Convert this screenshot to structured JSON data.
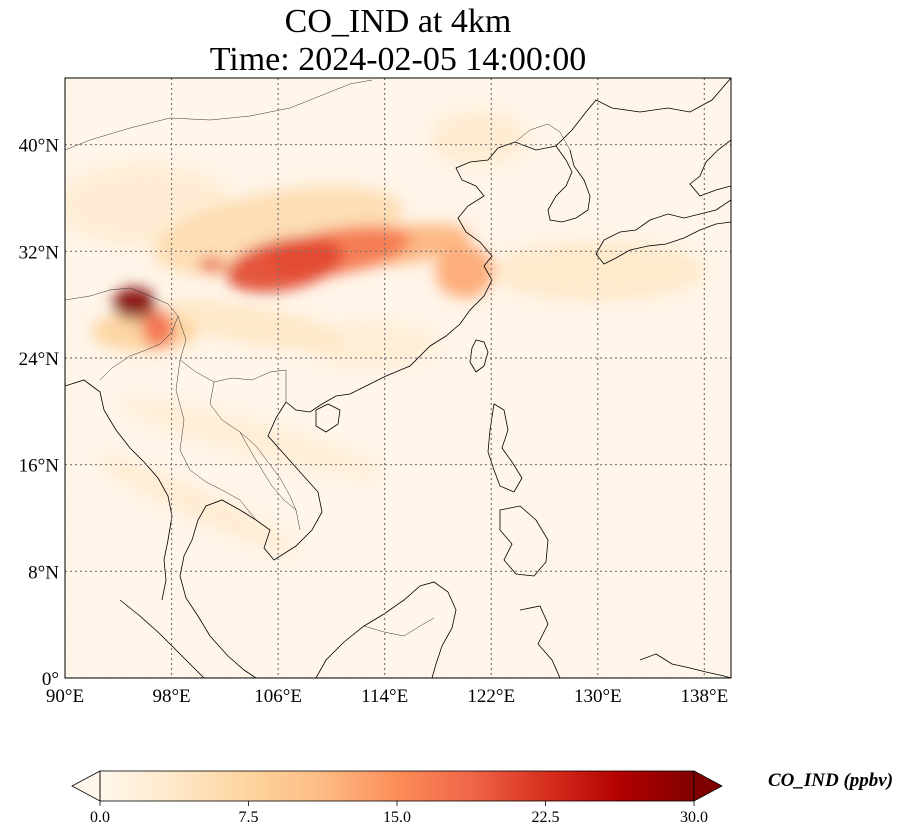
{
  "title": {
    "line1": "CO_IND at 4km",
    "line2": "Time: 2024-02-05 14:00:00"
  },
  "map": {
    "lon_range": [
      90,
      140
    ],
    "lat_range": [
      0,
      45
    ],
    "lon_ticks": [
      {
        "value": 90,
        "label": "90°E"
      },
      {
        "value": 98,
        "label": "98°E"
      },
      {
        "value": 106,
        "label": "106°E"
      },
      {
        "value": 114,
        "label": "114°E"
      },
      {
        "value": 122,
        "label": "122°E"
      },
      {
        "value": 130,
        "label": "130°E"
      },
      {
        "value": 138,
        "label": "138°E"
      }
    ],
    "lat_ticks": [
      {
        "value": 0,
        "label": "0°"
      },
      {
        "value": 8,
        "label": "8°N"
      },
      {
        "value": 16,
        "label": "16°N"
      },
      {
        "value": 24,
        "label": "24°N"
      },
      {
        "value": 32,
        "label": "32°N"
      },
      {
        "value": 40,
        "label": "40°N"
      }
    ],
    "gridlines": true,
    "colormap": "OrRd",
    "plumes": [
      {
        "lon": 95.2,
        "lat": 28.1,
        "rlon": 1.6,
        "rlat": 1.2,
        "value": 30,
        "rot": 0
      },
      {
        "lon": 97.0,
        "lat": 26.2,
        "rlon": 1.2,
        "rlat": 1.4,
        "value": 18,
        "rot": 0
      },
      {
        "lon": 106.5,
        "lat": 31.0,
        "rlon": 4.5,
        "rlat": 1.9,
        "value": 21,
        "rot": -12
      },
      {
        "lon": 110.5,
        "lat": 32.0,
        "rlon": 5.5,
        "rlat": 1.7,
        "value": 17,
        "rot": -10
      },
      {
        "lon": 101.0,
        "lat": 31.0,
        "rlon": 1.0,
        "rlat": 0.5,
        "value": 20,
        "rot": 0
      },
      {
        "lon": 115.5,
        "lat": 32.5,
        "rlon": 5.0,
        "rlat": 1.4,
        "value": 12,
        "rot": -8
      },
      {
        "lon": 120.0,
        "lat": 30.5,
        "rlon": 2.2,
        "rlat": 2.0,
        "value": 13,
        "rot": 0
      },
      {
        "lon": 106.0,
        "lat": 33.5,
        "rlon": 9.5,
        "rlat": 3.0,
        "value": 6,
        "rot": -10
      },
      {
        "lon": 130.0,
        "lat": 30.5,
        "rlon": 8.0,
        "rlat": 2.2,
        "value": 3.5,
        "rot": 0
      },
      {
        "lon": 96.0,
        "lat": 35.5,
        "rlon": 6.5,
        "rlat": 3.0,
        "value": 2.8,
        "rot": 0
      },
      {
        "lon": 96.0,
        "lat": 26.0,
        "rlon": 4.0,
        "rlat": 1.5,
        "value": 8,
        "rot": 0
      },
      {
        "lon": 104.0,
        "lat": 26.5,
        "rlon": 7.0,
        "rlat": 1.4,
        "value": 4,
        "rot": 10
      },
      {
        "lon": 104.0,
        "lat": 18.0,
        "rlon": 10.0,
        "rlat": 1.2,
        "value": 2.5,
        "rot": 15
      },
      {
        "lon": 100.0,
        "lat": 13.0,
        "rlon": 8.0,
        "rlat": 1.0,
        "value": 3,
        "rot": 25
      },
      {
        "lon": 121.0,
        "lat": 40.5,
        "rlon": 3.5,
        "rlat": 2.0,
        "value": 3,
        "rot": 0
      },
      {
        "lon": 113.0,
        "lat": 25.0,
        "rlon": 5.0,
        "rlat": 1.6,
        "value": 2.5,
        "rot": 0
      }
    ]
  },
  "colorbar": {
    "min": 0,
    "max": 30,
    "ticks": [
      {
        "value": 0,
        "label": "0.0"
      },
      {
        "value": 7.5,
        "label": "7.5"
      },
      {
        "value": 15,
        "label": "15.0"
      },
      {
        "value": 22.5,
        "label": "22.5"
      },
      {
        "value": 30,
        "label": "30.0"
      }
    ],
    "label": "CO_IND (ppbv)"
  }
}
